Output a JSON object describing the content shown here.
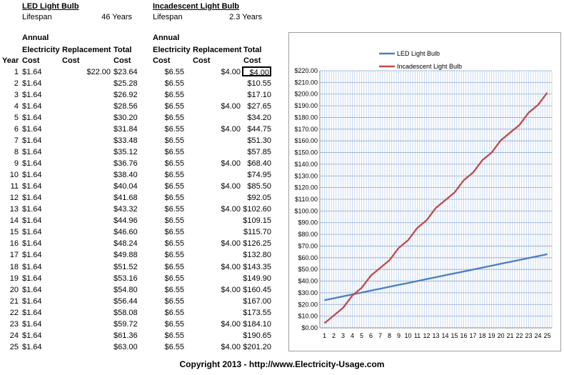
{
  "led": {
    "title": "LED Light Bulb",
    "lifespan_label": "Lifespan",
    "lifespan_value": "46 Years"
  },
  "incandescent": {
    "title": "Incadescent Light Bulb",
    "lifespan_label": "Lifespan",
    "lifespan_value": "2.3 Years"
  },
  "headers": {
    "year": "Year",
    "annual_line1": "Annual",
    "annual_line2": "Electricity",
    "annual_line3": "Cost",
    "replacement_line1": "Replacement",
    "replacement_line2": "Cost",
    "total_line1": "Total",
    "total_line2": "Cost"
  },
  "rows": [
    {
      "year": "1",
      "led_annual": "$1.64",
      "led_repl": "$22.00",
      "led_total": "$23.64",
      "inc_annual": "$6.55",
      "inc_repl": "$4.00",
      "inc_total": "$4.00"
    },
    {
      "year": "2",
      "led_annual": "$1.64",
      "led_repl": "",
      "led_total": "$25.28",
      "inc_annual": "$6.55",
      "inc_repl": "",
      "inc_total": "$10.55"
    },
    {
      "year": "3",
      "led_annual": "$1.64",
      "led_repl": "",
      "led_total": "$26.92",
      "inc_annual": "$6.55",
      "inc_repl": "",
      "inc_total": "$17.10"
    },
    {
      "year": "4",
      "led_annual": "$1.64",
      "led_repl": "",
      "led_total": "$28.56",
      "inc_annual": "$6.55",
      "inc_repl": "$4.00",
      "inc_total": "$27.65"
    },
    {
      "year": "5",
      "led_annual": "$1.64",
      "led_repl": "",
      "led_total": "$30.20",
      "inc_annual": "$6.55",
      "inc_repl": "",
      "inc_total": "$34.20"
    },
    {
      "year": "6",
      "led_annual": "$1.64",
      "led_repl": "",
      "led_total": "$31.84",
      "inc_annual": "$6.55",
      "inc_repl": "$4.00",
      "inc_total": "$44.75"
    },
    {
      "year": "7",
      "led_annual": "$1.64",
      "led_repl": "",
      "led_total": "$33.48",
      "inc_annual": "$6.55",
      "inc_repl": "",
      "inc_total": "$51.30"
    },
    {
      "year": "8",
      "led_annual": "$1.64",
      "led_repl": "",
      "led_total": "$35.12",
      "inc_annual": "$6.55",
      "inc_repl": "",
      "inc_total": "$57.85"
    },
    {
      "year": "9",
      "led_annual": "$1.64",
      "led_repl": "",
      "led_total": "$36.76",
      "inc_annual": "$6.55",
      "inc_repl": "$4.00",
      "inc_total": "$68.40"
    },
    {
      "year": "10",
      "led_annual": "$1.64",
      "led_repl": "",
      "led_total": "$38.40",
      "inc_annual": "$6.55",
      "inc_repl": "",
      "inc_total": "$74.95"
    },
    {
      "year": "11",
      "led_annual": "$1.64",
      "led_repl": "",
      "led_total": "$40.04",
      "inc_annual": "$6.55",
      "inc_repl": "$4.00",
      "inc_total": "$85.50"
    },
    {
      "year": "12",
      "led_annual": "$1.64",
      "led_repl": "",
      "led_total": "$41.68",
      "inc_annual": "$6.55",
      "inc_repl": "",
      "inc_total": "$92.05"
    },
    {
      "year": "13",
      "led_annual": "$1.64",
      "led_repl": "",
      "led_total": "$43.32",
      "inc_annual": "$6.55",
      "inc_repl": "$4.00",
      "inc_total": "$102.60"
    },
    {
      "year": "14",
      "led_annual": "$1.64",
      "led_repl": "",
      "led_total": "$44.96",
      "inc_annual": "$6.55",
      "inc_repl": "",
      "inc_total": "$109.15"
    },
    {
      "year": "15",
      "led_annual": "$1.64",
      "led_repl": "",
      "led_total": "$46.60",
      "inc_annual": "$6.55",
      "inc_repl": "",
      "inc_total": "$115.70"
    },
    {
      "year": "16",
      "led_annual": "$1.64",
      "led_repl": "",
      "led_total": "$48.24",
      "inc_annual": "$6.55",
      "inc_repl": "$4.00",
      "inc_total": "$126.25"
    },
    {
      "year": "17",
      "led_annual": "$1.64",
      "led_repl": "",
      "led_total": "$49.88",
      "inc_annual": "$6.55",
      "inc_repl": "",
      "inc_total": "$132.80"
    },
    {
      "year": "18",
      "led_annual": "$1.64",
      "led_repl": "",
      "led_total": "$51.52",
      "inc_annual": "$6.55",
      "inc_repl": "$4.00",
      "inc_total": "$143.35"
    },
    {
      "year": "19",
      "led_annual": "$1.64",
      "led_repl": "",
      "led_total": "$53.16",
      "inc_annual": "$6.55",
      "inc_repl": "",
      "inc_total": "$149.90"
    },
    {
      "year": "20",
      "led_annual": "$1.64",
      "led_repl": "",
      "led_total": "$54.80",
      "inc_annual": "$6.55",
      "inc_repl": "$4.00",
      "inc_total": "$160.45"
    },
    {
      "year": "21",
      "led_annual": "$1.64",
      "led_repl": "",
      "led_total": "$56.44",
      "inc_annual": "$6.55",
      "inc_repl": "",
      "inc_total": "$167.00"
    },
    {
      "year": "22",
      "led_annual": "$1.64",
      "led_repl": "",
      "led_total": "$58.08",
      "inc_annual": "$6.55",
      "inc_repl": "",
      "inc_total": "$173.55"
    },
    {
      "year": "23",
      "led_annual": "$1.64",
      "led_repl": "",
      "led_total": "$59.72",
      "inc_annual": "$6.55",
      "inc_repl": "$4.00",
      "inc_total": "$184.10"
    },
    {
      "year": "24",
      "led_annual": "$1.64",
      "led_repl": "",
      "led_total": "$61.36",
      "inc_annual": "$6.55",
      "inc_repl": "",
      "inc_total": "$190.65"
    },
    {
      "year": "25",
      "led_annual": "$1.64",
      "led_repl": "",
      "led_total": "$63.00",
      "inc_annual": "$6.55",
      "inc_repl": "$4.00",
      "inc_total": "$201.20"
    }
  ],
  "selected_cell": "row 1, incandescent total",
  "chart_data": {
    "type": "line",
    "title": "",
    "xlabel": "",
    "ylabel": "",
    "x": [
      1,
      2,
      3,
      4,
      5,
      6,
      7,
      8,
      9,
      10,
      11,
      12,
      13,
      14,
      15,
      16,
      17,
      18,
      19,
      20,
      21,
      22,
      23,
      24,
      25
    ],
    "ylim": [
      0,
      220
    ],
    "ytick_step": 10,
    "ytick_labels": [
      "$0.00",
      "$10.00",
      "$20.00",
      "$30.00",
      "$40.00",
      "$50.00",
      "$60.00",
      "$70.00",
      "$80.00",
      "$90.00",
      "$100.00",
      "$110.00",
      "$120.00",
      "$130.00",
      "$140.00",
      "$150.00",
      "$160.00",
      "$170.00",
      "$180.00",
      "$190.00",
      "$200.00",
      "$210.00",
      "$220.00"
    ],
    "grid": true,
    "legend_position": "top",
    "series": [
      {
        "name": "LED Light Bulb",
        "color": "#4a7ebb",
        "values": [
          23.64,
          25.28,
          26.92,
          28.56,
          30.2,
          31.84,
          33.48,
          35.12,
          36.76,
          38.4,
          40.04,
          41.68,
          43.32,
          44.96,
          46.6,
          48.24,
          49.88,
          51.52,
          53.16,
          54.8,
          56.44,
          58.08,
          59.72,
          61.36,
          63.0
        ]
      },
      {
        "name": "Incadescent Light Bulb",
        "color": "#be4b48",
        "values": [
          4.0,
          10.55,
          17.1,
          27.65,
          34.2,
          44.75,
          51.3,
          57.85,
          68.4,
          74.95,
          85.5,
          92.05,
          102.6,
          109.15,
          115.7,
          126.25,
          132.8,
          143.35,
          149.9,
          160.45,
          167.0,
          173.55,
          184.1,
          190.65,
          201.2
        ]
      }
    ]
  },
  "copyright": "Copyright 2013 - http://www.Electricity-Usage.com"
}
